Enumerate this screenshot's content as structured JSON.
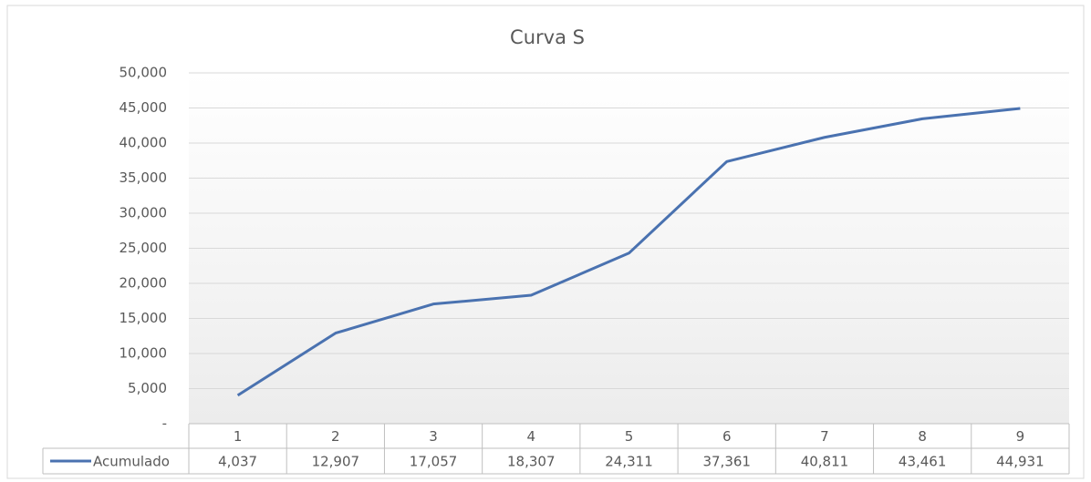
{
  "chart_data": {
    "type": "line",
    "title": "Curva S",
    "categories": [
      "1",
      "2",
      "3",
      "4",
      "5",
      "6",
      "7",
      "8",
      "9"
    ],
    "series": [
      {
        "name": "Acumulado",
        "color": "#4a72b0",
        "values": [
          4037,
          12907,
          17057,
          18307,
          24311,
          37361,
          40811,
          43461,
          44931
        ],
        "value_labels": [
          "4,037",
          "12,907",
          "17,057",
          "18,307",
          "24,311",
          "37,361",
          "40,811",
          "43,461",
          "44,931"
        ]
      }
    ],
    "ylim": [
      0,
      50000
    ],
    "yticks": [
      {
        "value": 0,
        "label": "-"
      },
      {
        "value": 5000,
        "label": "5,000"
      },
      {
        "value": 10000,
        "label": "10,000"
      },
      {
        "value": 15000,
        "label": "15,000"
      },
      {
        "value": 20000,
        "label": "20,000"
      },
      {
        "value": 25000,
        "label": "25,000"
      },
      {
        "value": 30000,
        "label": "30,000"
      },
      {
        "value": 35000,
        "label": "35,000"
      },
      {
        "value": 40000,
        "label": "40,000"
      },
      {
        "value": 45000,
        "label": "45,000"
      },
      {
        "value": 50000,
        "label": "50,000"
      }
    ],
    "grid": true
  }
}
